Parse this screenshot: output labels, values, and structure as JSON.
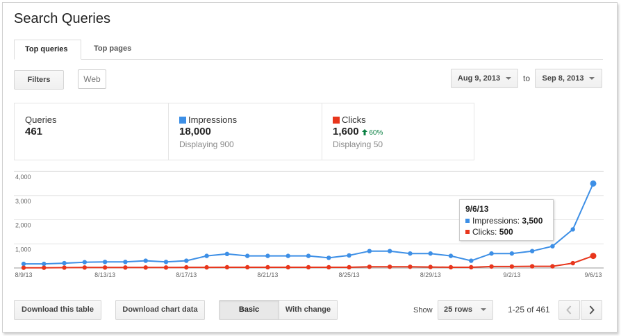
{
  "page": {
    "title": "Search Queries"
  },
  "tabs": [
    {
      "label": "Top queries"
    },
    {
      "label": "Top pages"
    }
  ],
  "filters": {
    "filters_label": "Filters",
    "web_label": "Web"
  },
  "date_range": {
    "start": "Aug 9, 2013",
    "to_label": "to",
    "end": "Sep 8, 2013"
  },
  "summary": {
    "queries": {
      "label": "Queries",
      "value": "461"
    },
    "impressions": {
      "label": "Impressions",
      "value": "18,000",
      "sub": "Displaying 900",
      "color": "#3d8fe6"
    },
    "clicks": {
      "label": "Clicks",
      "value": "1,600",
      "delta": "60%",
      "sub": "Displaying 50",
      "color": "#e8361c"
    }
  },
  "tooltip": {
    "date": "9/6/13",
    "impressions_label": "Impressions:",
    "impressions_value": "3,500",
    "clicks_label": "Clicks:",
    "clicks_value": "500"
  },
  "footer": {
    "download_table": "Download this table",
    "download_chart": "Download chart data",
    "view_basic": "Basic",
    "view_change": "With change",
    "show_label": "Show",
    "rows_select": "25 rows",
    "pager": "1-25 of 461"
  },
  "chart_data": {
    "type": "line",
    "ylim": [
      0,
      4000
    ],
    "yticks": [
      "4,000",
      "3,000",
      "2,000",
      "1,000"
    ],
    "xtick_labels": [
      "8/9/13",
      "8/13/13",
      "8/17/13",
      "8/21/13",
      "8/25/13",
      "8/29/13",
      "9/2/13",
      "9/6/13"
    ],
    "x": [
      "8/9/13",
      "8/10/13",
      "8/11/13",
      "8/12/13",
      "8/13/13",
      "8/14/13",
      "8/15/13",
      "8/16/13",
      "8/17/13",
      "8/18/13",
      "8/19/13",
      "8/20/13",
      "8/21/13",
      "8/22/13",
      "8/23/13",
      "8/24/13",
      "8/25/13",
      "8/26/13",
      "8/27/13",
      "8/28/13",
      "8/29/13",
      "8/30/13",
      "8/31/13",
      "9/1/13",
      "9/2/13",
      "9/3/13",
      "9/4/13",
      "9/5/13",
      "9/6/13"
    ],
    "series": [
      {
        "name": "Impressions",
        "color": "#3d8fe6",
        "values": [
          170,
          170,
          200,
          240,
          250,
          250,
          300,
          250,
          300,
          500,
          580,
          500,
          500,
          500,
          500,
          420,
          520,
          700,
          700,
          600,
          600,
          500,
          300,
          600,
          600,
          700,
          900,
          1600,
          3500
        ]
      },
      {
        "name": "Clicks",
        "color": "#e8361c",
        "values": [
          10,
          10,
          15,
          20,
          20,
          20,
          20,
          20,
          25,
          25,
          30,
          30,
          30,
          30,
          30,
          30,
          30,
          50,
          50,
          50,
          40,
          30,
          30,
          60,
          60,
          70,
          70,
          200,
          500
        ]
      }
    ]
  }
}
